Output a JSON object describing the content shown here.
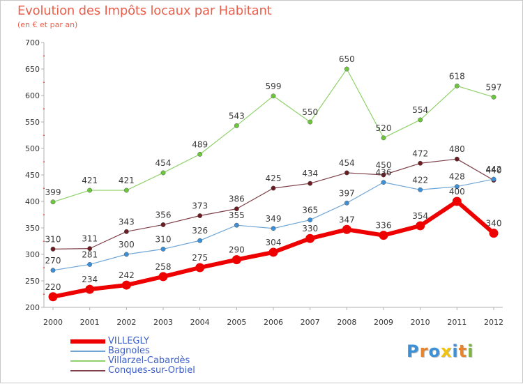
{
  "title": "Evolution des Impôts locaux par Habitant",
  "subtitle": "(en € et par an)",
  "brand": {
    "letters": [
      "P",
      "r",
      "o",
      "x",
      "i",
      "t",
      "i"
    ],
    "colors": [
      "#3d8fd6",
      "#e8842c",
      "#3d8fd6",
      "#f2c40f",
      "#3d8fd6",
      "#e8842c",
      "#7ab33d"
    ]
  },
  "chart_data": {
    "type": "line",
    "title": "Evolution des Impôts locaux par Habitant",
    "subtitle": "(en € et par an)",
    "x": [
      "2000",
      "2001",
      "2002",
      "2003",
      "2004",
      "2005",
      "2006",
      "2007",
      "2008",
      "2009",
      "2010",
      "2011",
      "2012"
    ],
    "yticks": [
      "200",
      "250",
      "300",
      "350",
      "400",
      "450",
      "500",
      "550",
      "600",
      "650",
      "700"
    ],
    "ylim": [
      200,
      700
    ],
    "grid": false,
    "legend_position": "bottom-left",
    "series": [
      {
        "name": "Villarzel-Cabardès",
        "color": "#8fd16a",
        "marker": "#6cc83a",
        "width": 1.2,
        "values": [
          399,
          421,
          421,
          454,
          489,
          543,
          599,
          550,
          650,
          520,
          554,
          618,
          597
        ],
        "labels": [
          "399",
          "421",
          "421",
          "454",
          "489",
          "543",
          "599",
          "550",
          "650",
          "520",
          "554",
          "618",
          "597"
        ]
      },
      {
        "name": "Conques-sur-Orbiel",
        "color": "#7e3f48",
        "marker": "#6a1c22",
        "width": 1.2,
        "values": [
          310,
          311,
          343,
          356,
          373,
          386,
          425,
          434,
          454,
          450,
          472,
          480,
          440
        ],
        "labels": [
          "310",
          "311",
          "343",
          "356",
          "373",
          "386",
          "425",
          "434",
          "454",
          "450",
          "472",
          "480",
          "440"
        ]
      },
      {
        "name": "Bagnoles",
        "color": "#6fa6d6",
        "marker": "#3d8fd6",
        "width": 1.2,
        "values": [
          270,
          281,
          300,
          310,
          326,
          355,
          349,
          365,
          397,
          436,
          422,
          428,
          442
        ],
        "labels": [
          "270",
          "281",
          "300",
          "310",
          "326",
          "355",
          "349",
          "365",
          "397",
          "436",
          "422",
          "428",
          "442"
        ]
      },
      {
        "name": "VILLEGLY",
        "color": "#ee0000",
        "marker": "#ee0000",
        "width": 6,
        "values": [
          220,
          234,
          242,
          258,
          275,
          290,
          304,
          330,
          347,
          336,
          354,
          400,
          340
        ],
        "labels": [
          "220",
          "234",
          "242",
          "258",
          "275",
          "290",
          "304",
          "330",
          "347",
          "336",
          "354",
          "400",
          "340"
        ]
      }
    ],
    "legend": [
      {
        "name": "VILLEGLY",
        "color": "#ee0000",
        "width": 6
      },
      {
        "name": "Bagnoles",
        "color": "#6fa6d6",
        "width": 1.5
      },
      {
        "name": "Villarzel-Cabardès",
        "color": "#8fd16a",
        "width": 1.5
      },
      {
        "name": "Conques-sur-Orbiel",
        "color": "#7e3f48",
        "width": 1.5
      }
    ]
  }
}
